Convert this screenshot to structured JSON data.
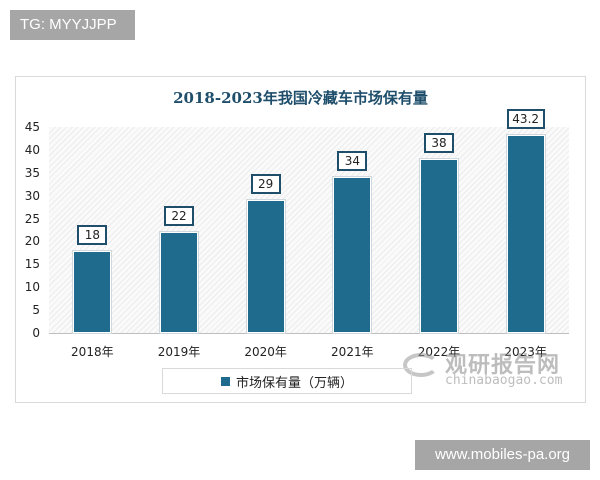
{
  "badges": {
    "tag": "TG: MYYJJPP",
    "url": "www.mobiles-pa.org"
  },
  "watermark": {
    "cn": "观研报告网",
    "en": "chinabaogao.com"
  },
  "chart_data": {
    "type": "bar",
    "title": "2018-2023年我国冷藏车市场保有量",
    "categories": [
      "2018年",
      "2019年",
      "2020年",
      "2021年",
      "2022年",
      "2023年"
    ],
    "series": [
      {
        "name": "市场保有量（万辆）",
        "values": [
          18,
          22,
          29,
          34,
          38,
          43.2
        ],
        "color": "#1f6b8e"
      }
    ],
    "value_labels": [
      "18",
      "22",
      "29",
      "34",
      "38",
      "43.2"
    ],
    "xlabel": "",
    "ylabel": "",
    "ylim": [
      0,
      45
    ],
    "yticks": [
      "0",
      "5",
      "10",
      "15",
      "20",
      "25",
      "30",
      "35",
      "40",
      "45"
    ],
    "grid": false,
    "legend_position": "bottom"
  }
}
